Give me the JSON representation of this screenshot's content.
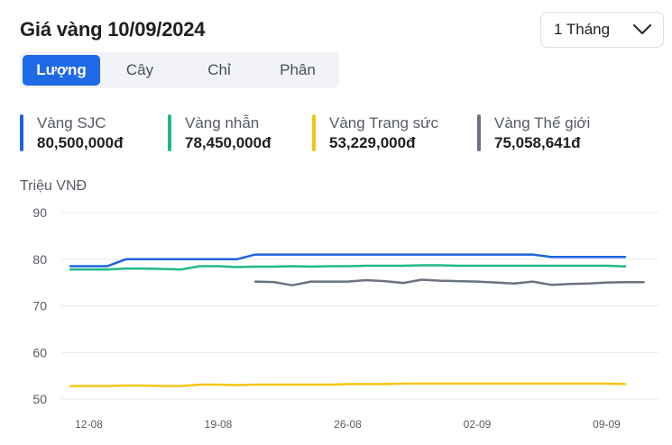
{
  "header": {
    "title": "Giá vàng 10/09/2024"
  },
  "period_select": {
    "value": "1 Tháng",
    "icon": "chevron-down-icon"
  },
  "tabs": [
    {
      "label": "Lượng",
      "active": true
    },
    {
      "label": "Cây",
      "active": false
    },
    {
      "label": "Chỉ",
      "active": false
    },
    {
      "label": "Phân",
      "active": false
    }
  ],
  "legend": [
    {
      "name": "Vàng SJC",
      "value": "80,500,000đ",
      "color": "#1e63e0"
    },
    {
      "name": "Vàng nhẫn",
      "value": "78,450,000đ",
      "color": "#1fb88a"
    },
    {
      "name": "Vàng Trang sức",
      "value": "53,229,000đ",
      "color": "#f5c518"
    },
    {
      "name": "Vàng Thế giới",
      "value": "75,058,641đ",
      "color": "#6b7280"
    }
  ],
  "chart_data": {
    "type": "line",
    "ylabel": "Triệu VNĐ",
    "ylim": [
      50,
      90
    ],
    "yticks": [
      90,
      80,
      70,
      60,
      50
    ],
    "x_tick_labels": [
      "12-08",
      "19-08",
      "26-08",
      "02-09",
      "09-09"
    ],
    "x_tick_index": [
      1,
      8,
      15,
      22,
      29
    ],
    "grid": true,
    "series": [
      {
        "name": "Vàng SJC",
        "color": "#1e63e0",
        "x": [
          0,
          1,
          2,
          3,
          4,
          5,
          6,
          7,
          8,
          9,
          10,
          11,
          12,
          13,
          14,
          15,
          16,
          17,
          18,
          19,
          20,
          21,
          22,
          23,
          24,
          25,
          26,
          27,
          28,
          29,
          30
        ],
        "values": [
          78.5,
          78.5,
          78.5,
          80,
          80,
          80,
          80,
          80,
          80,
          80,
          81,
          81,
          81,
          81,
          81,
          81,
          81,
          81,
          81,
          81,
          81,
          81,
          81,
          81,
          81,
          81,
          80.5,
          80.5,
          80.5,
          80.5,
          80.5
        ]
      },
      {
        "name": "Vàng nhẫn",
        "color": "#1fb88a",
        "x": [
          0,
          1,
          2,
          3,
          4,
          5,
          6,
          7,
          8,
          9,
          10,
          11,
          12,
          13,
          14,
          15,
          16,
          17,
          18,
          19,
          20,
          21,
          22,
          23,
          24,
          25,
          26,
          27,
          28,
          29,
          30
        ],
        "values": [
          77.8,
          77.8,
          77.8,
          78,
          78,
          77.9,
          77.8,
          78.5,
          78.5,
          78.3,
          78.4,
          78.4,
          78.5,
          78.4,
          78.5,
          78.5,
          78.6,
          78.6,
          78.6,
          78.7,
          78.7,
          78.6,
          78.6,
          78.6,
          78.6,
          78.6,
          78.6,
          78.6,
          78.6,
          78.6,
          78.45
        ]
      },
      {
        "name": "Vàng Thế giới",
        "color": "#6b7280",
        "x": [
          10,
          11,
          12,
          13,
          14,
          15,
          16,
          17,
          18,
          19,
          20,
          21,
          22,
          23,
          24,
          25,
          26,
          27,
          28,
          29,
          30,
          31
        ],
        "values": [
          75.2,
          75.1,
          74.4,
          75.2,
          75.2,
          75.2,
          75.5,
          75.3,
          74.9,
          75.6,
          75.4,
          75.3,
          75.2,
          75,
          74.8,
          75.2,
          74.5,
          74.7,
          74.8,
          75,
          75.06,
          75.06
        ]
      },
      {
        "name": "Vàng Trang sức",
        "color": "#f5c518",
        "x": [
          0,
          1,
          2,
          3,
          4,
          5,
          6,
          7,
          8,
          9,
          10,
          11,
          12,
          13,
          14,
          15,
          16,
          17,
          18,
          19,
          20,
          21,
          22,
          23,
          24,
          25,
          26,
          27,
          28,
          29,
          30
        ],
        "values": [
          52.8,
          52.8,
          52.8,
          52.9,
          52.9,
          52.8,
          52.8,
          53.1,
          53.1,
          53,
          53.1,
          53.1,
          53.1,
          53.1,
          53.1,
          53.2,
          53.2,
          53.2,
          53.3,
          53.3,
          53.3,
          53.3,
          53.3,
          53.3,
          53.3,
          53.3,
          53.3,
          53.3,
          53.3,
          53.3,
          53.2
        ]
      }
    ]
  }
}
